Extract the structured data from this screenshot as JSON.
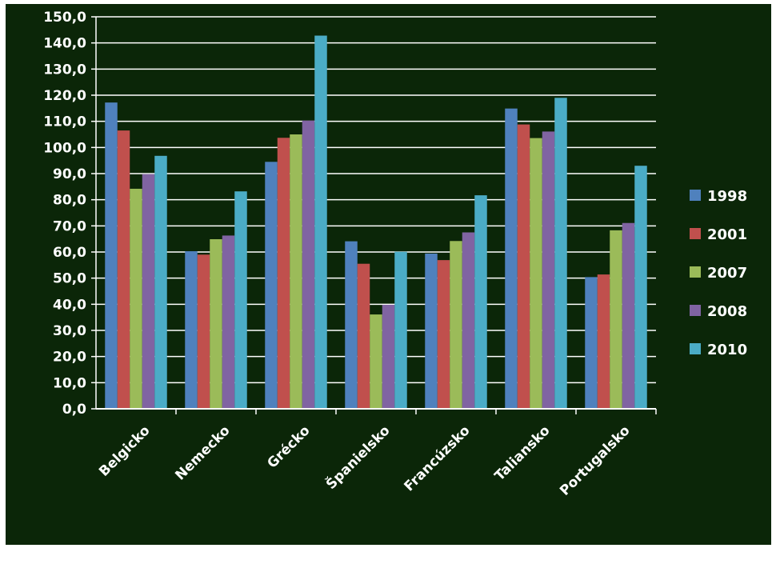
{
  "chart_data": {
    "type": "bar",
    "categories": [
      "Belgicko",
      "Nemecko",
      "Grécko",
      "Španielsko",
      "Francúzsko",
      "Taliansko",
      "Portugalsko"
    ],
    "series": [
      {
        "name": "1998",
        "color": "#4f81bd",
        "values": [
          117.2,
          60.3,
          94.5,
          64.1,
          59.4,
          114.9,
          50.4
        ]
      },
      {
        "name": "2001",
        "color": "#c0504d",
        "values": [
          106.5,
          59.0,
          103.7,
          55.5,
          56.9,
          108.8,
          51.4
        ]
      },
      {
        "name": "2007",
        "color": "#9bbb59",
        "values": [
          84.2,
          64.9,
          105.0,
          36.1,
          64.2,
          103.6,
          68.3
        ]
      },
      {
        "name": "2008",
        "color": "#8064a2",
        "values": [
          89.8,
          66.3,
          110.3,
          39.8,
          67.5,
          106.1,
          71.1
        ]
      },
      {
        "name": "2010",
        "color": "#4bacc6",
        "values": [
          96.8,
          83.2,
          142.8,
          60.1,
          81.7,
          119.0,
          93.0
        ]
      }
    ],
    "ylim": [
      0,
      150
    ],
    "yticks": [
      "0,0",
      "10,0",
      "20,0",
      "30,0",
      "40,0",
      "50,0",
      "60,0",
      "70,0",
      "80,0",
      "90,0",
      "100,0",
      "110,0",
      "120,0",
      "130,0",
      "140,0",
      "150,0"
    ],
    "grid": true,
    "legend": "right",
    "title": "",
    "xlabel": "",
    "ylabel": ""
  },
  "colors": {
    "background": "#0b2608",
    "gridline": "#ffffff",
    "text": "#ffffff"
  }
}
